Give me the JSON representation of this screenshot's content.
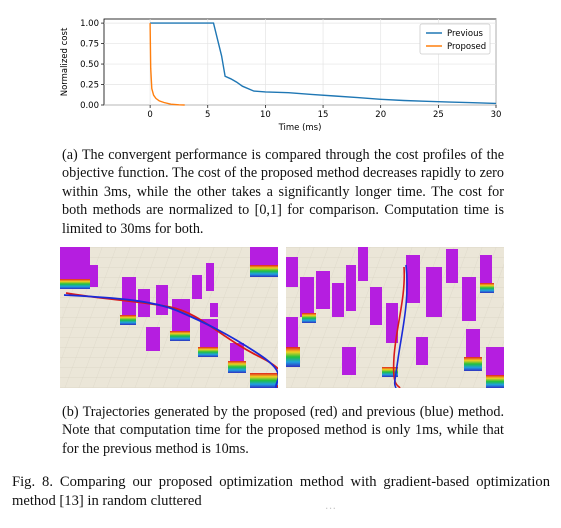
{
  "chart_data": {
    "type": "line",
    "xlabel": "Time (ms)",
    "ylabel": "Normalized cost",
    "xlim": [
      -4,
      30
    ],
    "ylim": [
      0,
      1.05
    ],
    "xticks": [
      0,
      5,
      10,
      15,
      20,
      25,
      30
    ],
    "yticks": [
      0.0,
      0.25,
      0.5,
      0.75,
      1.0
    ],
    "xtick_labels": [
      "0",
      "5",
      "10",
      "15",
      "20",
      "25",
      "30"
    ],
    "ytick_labels": [
      "0.00",
      "0.25",
      "0.50",
      "0.75",
      "1.00"
    ],
    "grid": true,
    "legend_position": "top-right",
    "series": [
      {
        "name": "Previous",
        "color": "#1f77b4",
        "x": [
          0,
          1,
          3,
          5.5,
          6.2,
          6.5,
          7,
          7.5,
          8,
          9,
          10,
          12,
          14,
          16,
          18,
          20,
          22,
          24,
          26,
          28,
          30
        ],
        "y": [
          1.0,
          1.0,
          1.0,
          1.0,
          0.6,
          0.35,
          0.32,
          0.28,
          0.23,
          0.17,
          0.16,
          0.15,
          0.13,
          0.11,
          0.09,
          0.07,
          0.055,
          0.045,
          0.035,
          0.028,
          0.02
        ]
      },
      {
        "name": "Proposed",
        "color": "#ff7f0e",
        "x": [
          0,
          0.05,
          0.15,
          0.3,
          0.5,
          0.8,
          1.2,
          1.8,
          2.5,
          3
        ],
        "y": [
          1.0,
          0.45,
          0.2,
          0.12,
          0.08,
          0.05,
          0.03,
          0.01,
          0.003,
          0.0
        ]
      }
    ]
  },
  "captions": {
    "a": "(a) The convergent performance is compared through the cost profiles of the objective function. The cost of the proposed method decreases rapidly to zero within 3ms, while the other takes a significantly longer time. The cost for both methods are normalized to [0,1] for comparison. Computation time is limited to 30ms for both.",
    "b": "(b) Trajectories generated by the proposed (red) and previous (blue) method. Note that computation time for the proposed method is only 1ms, while that for the previous method is 10ms.",
    "figure": "Fig. 8.   Comparing our proposed optimization method with gradient-based optimization method [13] in random cluttered"
  },
  "watermark": "...",
  "colors": {
    "obstacle": "#b51ee0",
    "ground": "#e9e4d6",
    "trajectory_previous": "#1a2bd8",
    "trajectory_proposed": "#d81a1a"
  }
}
